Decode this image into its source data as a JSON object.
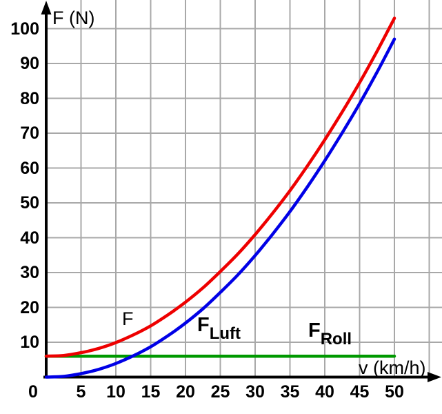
{
  "figure": {
    "y_axis_title": "F (N)",
    "x_axis_title": "v (km/h)"
  },
  "chart_data": {
    "type": "line",
    "title": "",
    "xlabel": "v (km/h)",
    "ylabel": "F (N)",
    "xlim": [
      0,
      56.8
    ],
    "ylim": [
      0,
      108.2
    ],
    "x_ticks": [
      0,
      5,
      10,
      15,
      20,
      25,
      30,
      35,
      40,
      45,
      50
    ],
    "y_ticks": [
      10,
      20,
      30,
      40,
      50,
      60,
      70,
      80,
      90,
      100
    ],
    "grid": {
      "x_step": 5,
      "y_step": 10,
      "color": "#a8a8a8"
    },
    "axis_color": "#000000",
    "legend_position": "inline-curve-labels",
    "x": [
      0,
      2.5,
      5,
      7.5,
      10,
      12.5,
      15,
      17.5,
      20,
      22.5,
      25,
      27.5,
      30,
      32.5,
      35,
      37.5,
      40,
      42.5,
      45,
      47.5,
      50
    ],
    "series": [
      {
        "name": "F_Roll",
        "label_main": "F",
        "label_sub": "Roll",
        "color": "#009900",
        "values": [
          6,
          6,
          6,
          6,
          6,
          6,
          6,
          6,
          6,
          6,
          6,
          6,
          6,
          6,
          6,
          6,
          6,
          6,
          6,
          6,
          6
        ]
      },
      {
        "name": "F_Luft",
        "label_main": "F",
        "label_sub": "Luft",
        "color": "#0000e6",
        "values": [
          0,
          0.2,
          1.0,
          2.2,
          3.9,
          6.1,
          8.7,
          11.9,
          15.5,
          19.6,
          24.3,
          29.3,
          34.9,
          41.0,
          47.5,
          54.6,
          62.1,
          70.1,
          78.5,
          87.5,
          97.0
        ]
      },
      {
        "name": "F",
        "label_main": "F",
        "label_sub": "",
        "color": "#ee0000",
        "values": [
          6.0,
          6.2,
          7.0,
          8.2,
          9.9,
          12.1,
          14.7,
          17.9,
          21.5,
          25.6,
          30.3,
          35.3,
          40.9,
          47.0,
          53.5,
          60.6,
          68.1,
          76.1,
          84.5,
          93.5,
          103.0
        ]
      }
    ]
  }
}
